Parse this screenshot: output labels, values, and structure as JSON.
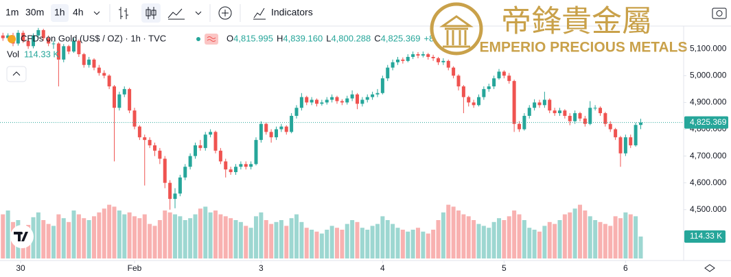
{
  "toolbar": {
    "intervals": [
      "1m",
      "30m",
      "1h",
      "4h"
    ],
    "indicators": "Indicators"
  },
  "logo": {
    "chinese": "帝鋒貴金屬",
    "english": "EMPERIO PRECIOUS METALS"
  },
  "legend": {
    "symbol": "CFDs on Gold (US$ / OZ) · 1h · TVC",
    "ohlc": [
      [
        "O",
        "4,815.995"
      ],
      [
        "H",
        "4,839.160"
      ],
      [
        "L",
        "4,800.288"
      ],
      [
        "C",
        "4,825.369"
      ]
    ],
    "change": "+8.",
    "volume_name": "Vol",
    "volume": "114.33 K"
  },
  "price_tag": "4,825.369",
  "volume_tag": "114.33 K",
  "chart_data": {
    "type": "candlestick",
    "up_color": "#26a69a",
    "down_color": "#ef5350",
    "open": [
      5150,
      5140,
      5150,
      5120,
      5160,
      5130,
      5110,
      5150,
      5170,
      5140,
      5120,
      5120,
      5060,
      5110,
      5090,
      5130,
      5080,
      5040,
      5060,
      5030,
      5010,
      5000,
      4960,
      4880,
      4930,
      4950,
      4870,
      4810,
      4770,
      4760,
      4740,
      4720,
      4690,
      4600,
      4540,
      4560,
      4620,
      4660,
      4700,
      4740,
      4730,
      4780,
      4790,
      4720,
      4680,
      4650,
      4640,
      4660,
      4670,
      4660,
      4670,
      4760,
      4820,
      4790,
      4770,
      4800,
      4810,
      4790,
      4850,
      4880,
      4920,
      4900,
      4910,
      4895,
      4900,
      4910,
      4920,
      4905,
      4900,
      4915,
      4930,
      4895,
      4910,
      4920,
      4930,
      4935,
      4990,
      5030,
      5050,
      5060,
      5055,
      5070,
      5080,
      5075,
      5080,
      5070,
      5065,
      5050,
      5055,
      5030,
      5000,
      4960,
      4920,
      4900,
      4890,
      4920,
      4950,
      4960,
      4990,
      5015,
      5000,
      4980,
      4820,
      4800,
      4850,
      4880,
      4900,
      4890,
      4910,
      4870,
      4860,
      4870,
      4850,
      4830,
      4860,
      4840,
      4820,
      4880,
      4880,
      4860,
      4820,
      4800,
      4770,
      4710,
      4770,
      4740,
      4815.995
    ],
    "high": [
      5160,
      5158,
      5160,
      5170,
      5168,
      5140,
      5158,
      5178,
      5175,
      5150,
      5130,
      5125,
      5118,
      5115,
      5140,
      5135,
      5085,
      5070,
      5065,
      5040,
      5020,
      5005,
      4965,
      4940,
      4960,
      4955,
      4880,
      4815,
      4780,
      4770,
      4750,
      4730,
      4700,
      4610,
      4580,
      4630,
      4670,
      4710,
      4750,
      4760,
      4790,
      4800,
      4795,
      4730,
      4690,
      4660,
      4670,
      4680,
      4680,
      4680,
      4770,
      4830,
      4825,
      4800,
      4810,
      4820,
      4815,
      4860,
      4890,
      4935,
      4925,
      4920,
      4915,
      4910,
      4920,
      4930,
      4925,
      4912,
      4925,
      4945,
      4935,
      4920,
      4930,
      4940,
      4950,
      5000,
      5040,
      5060,
      5070,
      5068,
      5080,
      5090,
      5088,
      5090,
      5085,
      5078,
      5070,
      5065,
      5060,
      5035,
      5005,
      4965,
      4925,
      4910,
      4930,
      4960,
      4970,
      5000,
      5025,
      5020,
      5010,
      4985,
      4830,
      4860,
      4890,
      4912,
      4910,
      4940,
      4915,
      4880,
      4880,
      4875,
      4860,
      4870,
      4865,
      4850,
      4905,
      4890,
      4885,
      4865,
      4830,
      4805,
      4775,
      4780,
      4780,
      4825,
      4839.16
    ],
    "low": [
      5130,
      5132,
      5110,
      5112,
      5122,
      5100,
      5102,
      5140,
      5130,
      5110,
      5100,
      4960,
      5050,
      5080,
      5085,
      5070,
      5030,
      5030,
      5020,
      5000,
      4990,
      4950,
      4680,
      4870,
      4920,
      4860,
      4800,
      4760,
      4590,
      4730,
      4700,
      4670,
      4580,
      4500,
      4505,
      4550,
      4610,
      4650,
      4690,
      4720,
      4720,
      4770,
      4710,
      4670,
      4620,
      4630,
      4630,
      4650,
      4650,
      4650,
      4665,
      4750,
      4780,
      4750,
      4760,
      4790,
      4780,
      4785,
      4840,
      4870,
      4890,
      4890,
      4885,
      4888,
      4892,
      4900,
      4895,
      4890,
      4892,
      4905,
      4875,
      4885,
      4900,
      4910,
      4920,
      4930,
      4980,
      5020,
      5040,
      5045,
      5050,
      5062,
      5065,
      5068,
      5060,
      5055,
      5040,
      5040,
      5020,
      4990,
      4945,
      4860,
      4885,
      4880,
      4885,
      4910,
      4940,
      4950,
      4985,
      4990,
      4970,
      4790,
      4790,
      4795,
      4840,
      4870,
      4880,
      4880,
      4860,
      4850,
      4850,
      4840,
      4815,
      4820,
      4830,
      4810,
      4815,
      4870,
      4850,
      4810,
      4790,
      4760,
      4660,
      4700,
      4730,
      4735,
      4800.288
    ],
    "close": [
      5140,
      5150,
      5120,
      5160,
      5130,
      5110,
      5150,
      5170,
      5140,
      5120,
      5120,
      5060,
      5110,
      5090,
      5130,
      5080,
      5040,
      5060,
      5030,
      5010,
      5000,
      4960,
      4880,
      4930,
      4950,
      4870,
      4810,
      4770,
      4760,
      4740,
      4720,
      4690,
      4600,
      4540,
      4560,
      4620,
      4660,
      4700,
      4740,
      4730,
      4780,
      4790,
      4720,
      4680,
      4650,
      4640,
      4660,
      4670,
      4660,
      4670,
      4760,
      4820,
      4790,
      4770,
      4800,
      4810,
      4790,
      4850,
      4880,
      4920,
      4900,
      4910,
      4895,
      4900,
      4910,
      4920,
      4905,
      4900,
      4915,
      4930,
      4895,
      4910,
      4920,
      4930,
      4935,
      4990,
      5030,
      5050,
      5060,
      5055,
      5070,
      5080,
      5075,
      5080,
      5070,
      5065,
      5050,
      5055,
      5030,
      5000,
      4960,
      4920,
      4900,
      4890,
      4920,
      4950,
      4960,
      4990,
      5015,
      5000,
      4980,
      4820,
      4800,
      4850,
      4880,
      4900,
      4890,
      4910,
      4870,
      4860,
      4870,
      4850,
      4830,
      4860,
      4840,
      4820,
      4880,
      4880,
      4860,
      4820,
      4800,
      4770,
      4710,
      4770,
      4740,
      4816,
      4825.369
    ],
    "volume": [
      230,
      250,
      190,
      200,
      160,
      175,
      215,
      240,
      200,
      180,
      170,
      230,
      210,
      190,
      250,
      230,
      210,
      200,
      220,
      240,
      260,
      280,
      270,
      250,
      230,
      240,
      220,
      210,
      230,
      180,
      170,
      200,
      250,
      240,
      230,
      220,
      200,
      210,
      230,
      260,
      270,
      240,
      250,
      230,
      220,
      210,
      200,
      190,
      170,
      160,
      220,
      240,
      200,
      180,
      190,
      200,
      170,
      210,
      230,
      190,
      160,
      150,
      140,
      130,
      150,
      170,
      160,
      150,
      180,
      200,
      190,
      160,
      150,
      170,
      180,
      220,
      200,
      180,
      160,
      150,
      140,
      150,
      160,
      140,
      130,
      150,
      200,
      240,
      280,
      270,
      250,
      230,
      220,
      200,
      180,
      170,
      160,
      190,
      210,
      200,
      220,
      250,
      230,
      200,
      160,
      150,
      140,
      170,
      190,
      180,
      200,
      230,
      240,
      260,
      280,
      250,
      220,
      200,
      190,
      180,
      170,
      220,
      210,
      240,
      230,
      220,
      114.33
    ],
    "ylim": [
      4310,
      5180
    ],
    "yticks": [
      {
        "value": 4500,
        "label": "4,500.000"
      },
      {
        "value": 4600,
        "label": "4,600.000"
      },
      {
        "value": 4700,
        "label": "4,700.000"
      },
      {
        "value": 4800,
        "label": "4,800.000"
      },
      {
        "value": 4900,
        "label": "4,900.000"
      },
      {
        "value": 5000,
        "label": "5,000.000"
      },
      {
        "value": 5100,
        "label": "5,100.000"
      }
    ],
    "xticks": [
      {
        "value": 3.5,
        "label": "30"
      },
      {
        "value": 26,
        "label": "Feb"
      },
      {
        "value": 51,
        "label": "3"
      },
      {
        "value": 75,
        "label": "4"
      },
      {
        "value": 99,
        "label": "5"
      },
      {
        "value": 123,
        "label": "6"
      }
    ]
  }
}
